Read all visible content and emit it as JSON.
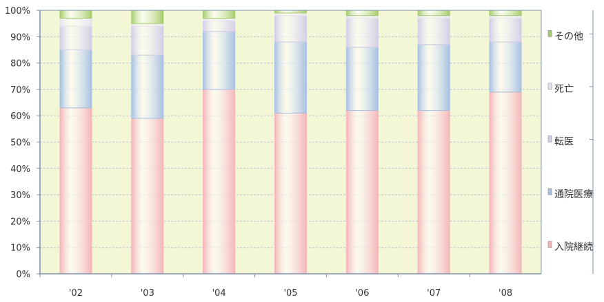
{
  "chart_data": {
    "type": "bar",
    "stacked": true,
    "percent": true,
    "title": "",
    "xlabel": "",
    "ylabel": "",
    "ylim": [
      0,
      100
    ],
    "yticks": [
      "0%",
      "10%",
      "20%",
      "30%",
      "40%",
      "50%",
      "60%",
      "70%",
      "80%",
      "90%",
      "100%"
    ],
    "categories": [
      "'02",
      "'03",
      "'04",
      "'05",
      "'06",
      "'07",
      "'08"
    ],
    "series": [
      {
        "name": "入院継続",
        "color": "#f4b6b8",
        "values": [
          63,
          59,
          70,
          61,
          62,
          62,
          69
        ]
      },
      {
        "name": "通院医療",
        "color": "#a9c0e2",
        "values": [
          22,
          24,
          22,
          27,
          24,
          25,
          19
        ]
      },
      {
        "name": "転医",
        "color": "#d3cde6",
        "values": [
          9,
          11,
          4,
          10,
          11,
          10,
          9
        ]
      },
      {
        "name": "死亡",
        "color": "#e8e4ee",
        "values": [
          3,
          1,
          1,
          1,
          1,
          1,
          1
        ]
      },
      {
        "name": "その他",
        "color": "#a5cc6a",
        "values": [
          3,
          5,
          3,
          1,
          2,
          2,
          2
        ]
      }
    ],
    "legend_position": "right",
    "legend_order": [
      "その他",
      "死亡",
      "転医",
      "通院医療",
      "入院継続"
    ],
    "grid": true,
    "plot_background": "#f4f7d6",
    "grid_color": "#b8c0d4",
    "axis_color": "#7f8fae"
  }
}
